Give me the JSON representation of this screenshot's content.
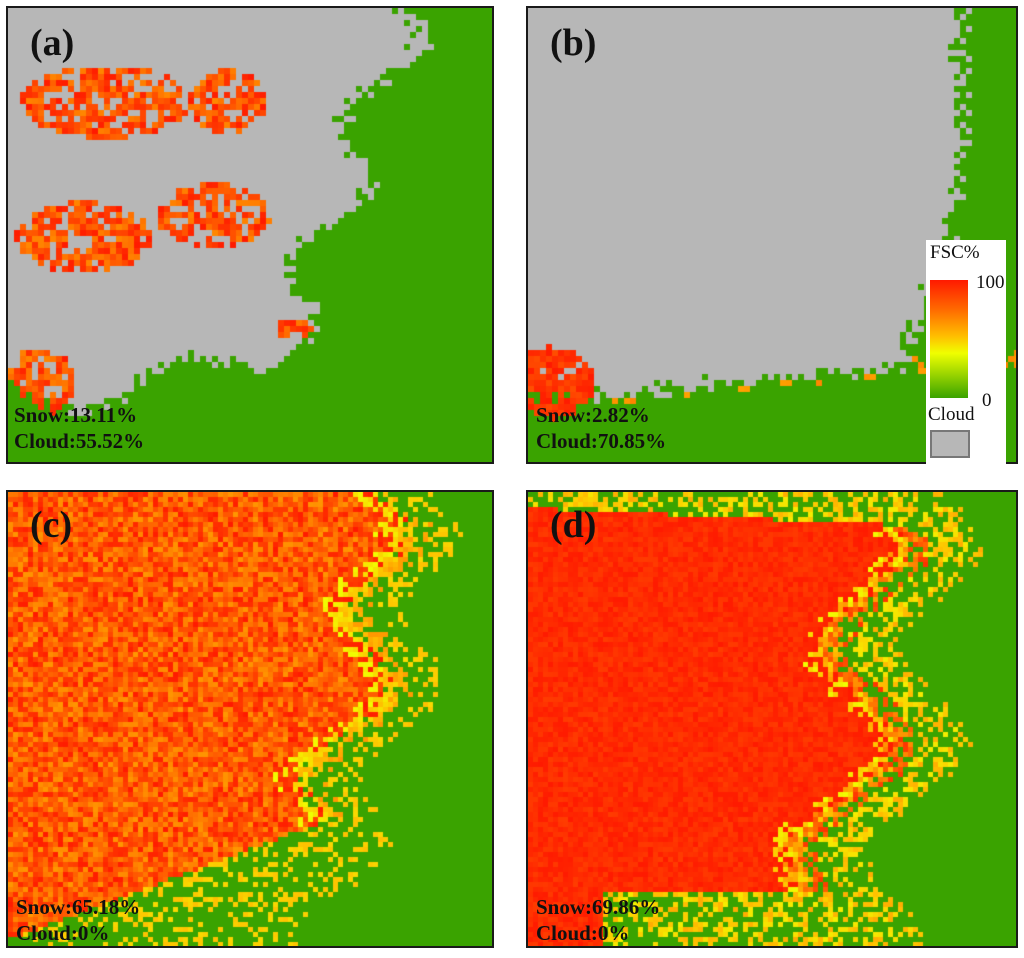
{
  "panels": [
    {
      "label": "(a)",
      "snow": "Snow:13.11%",
      "cloud": "Cloud:55.52%"
    },
    {
      "label": "(b)",
      "snow": "Snow:2.82%",
      "cloud": "Cloud:70.85%"
    },
    {
      "label": "(c)",
      "snow": "Snow:65.18%",
      "cloud": "Cloud:0%"
    },
    {
      "label": "(d)",
      "snow": "Snow:69.86%",
      "cloud": "Cloud:0%"
    }
  ],
  "legend": {
    "title": "FSC%",
    "max": "100",
    "min": "0",
    "cloud_label": "Cloud",
    "colors": {
      "snow_high": "#ff1a00",
      "snow_mid": "#ffc000",
      "snow_low": "#3aa300",
      "cloud": "#b7b7b7",
      "land": "#3aa300"
    }
  }
}
